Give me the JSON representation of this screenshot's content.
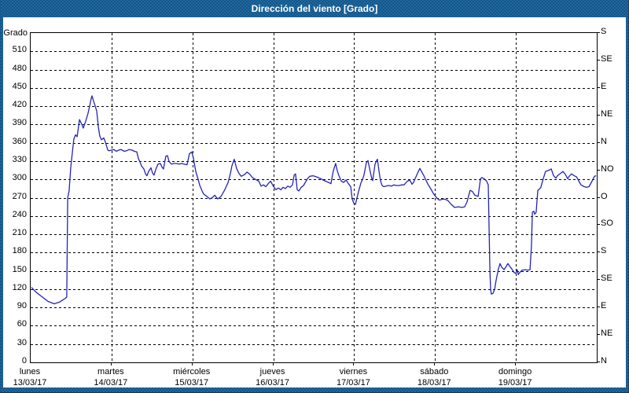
{
  "window": {
    "title": "Dirección del viento [Grado]"
  },
  "colors": {
    "titlebar": "#1f6ba3",
    "window_border_dark": "#0a3c63",
    "plot_border": "#000000",
    "grid": "#000000",
    "series": "#2424b8",
    "background": "#ffffff",
    "title_text": "#ffffff",
    "label_text": "#000000"
  },
  "chart_data": {
    "type": "line",
    "title": "Dirección del viento [Grado]",
    "ylabel_left": "Grado",
    "ylabel_unit": "Grado",
    "ylim": [
      0,
      540
    ],
    "grid": "dashed",
    "legend": "none",
    "y_left_ticks": [
      0,
      30,
      60,
      90,
      120,
      150,
      180,
      210,
      240,
      270,
      300,
      330,
      360,
      390,
      420,
      450,
      480,
      510
    ],
    "y_right_ticks": [
      {
        "value": 0,
        "label": "N"
      },
      {
        "value": 45,
        "label": "NE"
      },
      {
        "value": 90,
        "label": "E"
      },
      {
        "value": 135,
        "label": "SE"
      },
      {
        "value": 180,
        "label": "S"
      },
      {
        "value": 225,
        "label": "SO"
      },
      {
        "value": 270,
        "label": "O"
      },
      {
        "value": 315,
        "label": "NO"
      },
      {
        "value": 360,
        "label": "N"
      },
      {
        "value": 405,
        "label": "NE"
      },
      {
        "value": 450,
        "label": "E"
      },
      {
        "value": 495,
        "label": "SE"
      },
      {
        "value": 540,
        "label": "S"
      }
    ],
    "x_unit": "hours",
    "xlim": [
      0,
      168
    ],
    "x_days": [
      {
        "name": "lunes",
        "date": "13/03/17",
        "start_hour": 0
      },
      {
        "name": "martes",
        "date": "14/03/17",
        "start_hour": 24
      },
      {
        "name": "miércoles",
        "date": "15/03/17",
        "start_hour": 48
      },
      {
        "name": "jueves",
        "date": "16/03/17",
        "start_hour": 72
      },
      {
        "name": "viernes",
        "date": "17/03/17",
        "start_hour": 96
      },
      {
        "name": "sábado",
        "date": "18/03/17",
        "start_hour": 120
      },
      {
        "name": "domingo",
        "date": "19/03/17",
        "start_hour": 144
      }
    ],
    "series": [
      {
        "name": "Dirección del viento",
        "unit": "Grado",
        "color": "#2424b8",
        "points": [
          [
            0.2,
            123
          ],
          [
            1.6,
            115
          ],
          [
            3.5,
            107
          ],
          [
            5.1,
            100
          ],
          [
            7.0,
            96
          ],
          [
            8.6,
            99
          ],
          [
            10.3,
            105
          ],
          [
            10.7,
            107
          ],
          [
            11.0,
            270
          ],
          [
            11.4,
            281
          ],
          [
            11.9,
            320
          ],
          [
            12.4,
            345
          ],
          [
            12.8,
            366
          ],
          [
            13.3,
            373
          ],
          [
            13.8,
            370
          ],
          [
            14.5,
            398
          ],
          [
            15.2,
            390
          ],
          [
            15.6,
            384
          ],
          [
            16.3,
            395
          ],
          [
            17.0,
            408
          ],
          [
            17.5,
            420
          ],
          [
            18.0,
            433
          ],
          [
            18.2,
            437
          ],
          [
            18.7,
            428
          ],
          [
            19.1,
            421
          ],
          [
            19.6,
            412
          ],
          [
            20.1,
            386
          ],
          [
            20.5,
            371
          ],
          [
            21.0,
            365
          ],
          [
            21.7,
            368
          ],
          [
            22.2,
            361
          ],
          [
            22.9,
            348
          ],
          [
            23.3,
            347
          ],
          [
            24.0,
            348
          ],
          [
            24.7,
            349
          ],
          [
            25.4,
            346
          ],
          [
            26.1,
            348
          ],
          [
            26.8,
            349
          ],
          [
            27.8,
            346
          ],
          [
            28.5,
            347
          ],
          [
            29.2,
            349
          ],
          [
            30.1,
            348
          ],
          [
            30.8,
            346
          ],
          [
            31.5,
            345
          ],
          [
            32.0,
            334
          ],
          [
            32.4,
            329
          ],
          [
            32.9,
            322
          ],
          [
            33.6,
            317
          ],
          [
            34.1,
            309
          ],
          [
            34.5,
            306
          ],
          [
            35.0,
            313
          ],
          [
            35.7,
            319
          ],
          [
            36.2,
            310
          ],
          [
            36.6,
            307
          ],
          [
            37.1,
            316
          ],
          [
            37.8,
            325
          ],
          [
            38.5,
            326
          ],
          [
            39.0,
            320
          ],
          [
            39.4,
            317
          ],
          [
            40.1,
            338
          ],
          [
            40.6,
            339
          ],
          [
            41.1,
            329
          ],
          [
            41.8,
            325
          ],
          [
            42.5,
            326
          ],
          [
            43.2,
            326
          ],
          [
            44.1,
            325
          ],
          [
            44.8,
            326
          ],
          [
            45.5,
            325
          ],
          [
            46.4,
            324
          ],
          [
            47.1,
            342
          ],
          [
            47.8,
            345
          ],
          [
            48.3,
            335
          ],
          [
            49.0,
            313
          ],
          [
            49.7,
            300
          ],
          [
            50.2,
            290
          ],
          [
            50.9,
            281
          ],
          [
            51.3,
            276
          ],
          [
            52.3,
            272
          ],
          [
            53.2,
            268
          ],
          [
            53.9,
            270
          ],
          [
            54.6,
            274
          ],
          [
            55.5,
            268
          ],
          [
            56.5,
            272
          ],
          [
            57.6,
            283
          ],
          [
            58.6,
            295
          ],
          [
            59.3,
            310
          ],
          [
            59.7,
            322
          ],
          [
            60.4,
            333
          ],
          [
            61.1,
            318
          ],
          [
            61.8,
            310
          ],
          [
            62.5,
            305
          ],
          [
            63.5,
            308
          ],
          [
            64.2,
            312
          ],
          [
            65.1,
            308
          ],
          [
            65.8,
            303
          ],
          [
            66.7,
            300
          ],
          [
            67.7,
            297
          ],
          [
            68.4,
            289
          ],
          [
            69.1,
            291
          ],
          [
            69.8,
            288
          ],
          [
            70.5,
            293
          ],
          [
            71.2,
            297
          ],
          [
            72.1,
            288
          ],
          [
            72.8,
            283
          ],
          [
            73.5,
            286
          ],
          [
            74.2,
            283
          ],
          [
            74.9,
            287
          ],
          [
            75.6,
            285
          ],
          [
            76.3,
            289
          ],
          [
            77.0,
            287
          ],
          [
            77.7,
            291
          ],
          [
            78.2,
            307
          ],
          [
            78.6,
            309
          ],
          [
            79.1,
            283
          ],
          [
            79.6,
            281
          ],
          [
            80.3,
            287
          ],
          [
            81.0,
            290
          ],
          [
            82.1,
            301
          ],
          [
            82.8,
            305
          ],
          [
            83.8,
            306
          ],
          [
            84.9,
            304
          ],
          [
            86.1,
            301
          ],
          [
            86.8,
            299
          ],
          [
            87.5,
            297
          ],
          [
            88.4,
            295
          ],
          [
            89.1,
            293
          ],
          [
            89.8,
            314
          ],
          [
            90.5,
            326
          ],
          [
            91.0,
            314
          ],
          [
            91.5,
            306
          ],
          [
            92.2,
            297
          ],
          [
            92.9,
            295
          ],
          [
            93.6,
            299
          ],
          [
            94.3,
            293
          ],
          [
            95.0,
            288
          ],
          [
            95.4,
            268
          ],
          [
            95.9,
            261
          ],
          [
            96.4,
            259
          ],
          [
            96.6,
            264
          ],
          [
            97.3,
            280
          ],
          [
            98.0,
            294
          ],
          [
            98.5,
            300
          ],
          [
            98.9,
            307
          ],
          [
            99.6,
            327
          ],
          [
            100.1,
            331
          ],
          [
            100.8,
            312
          ],
          [
            101.3,
            300
          ],
          [
            101.5,
            298
          ],
          [
            102.2,
            325
          ],
          [
            102.7,
            331
          ],
          [
            102.9,
            333
          ],
          [
            103.4,
            313
          ],
          [
            103.8,
            298
          ],
          [
            104.3,
            290
          ],
          [
            104.8,
            288
          ],
          [
            105.5,
            289
          ],
          [
            106.2,
            290
          ],
          [
            107.1,
            289
          ],
          [
            107.8,
            291
          ],
          [
            108.5,
            290
          ],
          [
            109.4,
            290
          ],
          [
            110.1,
            291
          ],
          [
            110.8,
            291
          ],
          [
            111.8,
            297
          ],
          [
            112.5,
            299
          ],
          [
            113.2,
            292
          ],
          [
            113.6,
            295
          ],
          [
            114.8,
            310
          ],
          [
            115.5,
            318
          ],
          [
            116.7,
            306
          ],
          [
            117.8,
            293
          ],
          [
            118.8,
            284
          ],
          [
            119.5,
            277
          ],
          [
            120.6,
            269
          ],
          [
            121.3,
            266
          ],
          [
            122.5,
            268
          ],
          [
            123.7,
            266
          ],
          [
            124.8,
            259
          ],
          [
            125.8,
            254
          ],
          [
            126.9,
            255
          ],
          [
            128.1,
            254
          ],
          [
            128.8,
            255
          ],
          [
            129.5,
            263
          ],
          [
            130.4,
            282
          ],
          [
            131.1,
            280
          ],
          [
            131.8,
            274
          ],
          [
            132.8,
            272
          ],
          [
            133.5,
            301
          ],
          [
            133.9,
            303
          ],
          [
            134.6,
            301
          ],
          [
            135.3,
            297
          ],
          [
            135.8,
            291
          ],
          [
            136.0,
            230
          ],
          [
            136.3,
            150
          ],
          [
            136.5,
            120
          ],
          [
            136.7,
            112
          ],
          [
            137.2,
            113
          ],
          [
            137.7,
            120
          ],
          [
            138.1,
            134
          ],
          [
            138.8,
            153
          ],
          [
            139.3,
            162
          ],
          [
            139.8,
            156
          ],
          [
            140.5,
            152
          ],
          [
            141.2,
            158
          ],
          [
            141.6,
            162
          ],
          [
            142.1,
            158
          ],
          [
            142.8,
            153
          ],
          [
            143.5,
            147
          ],
          [
            144.0,
            146
          ],
          [
            144.4,
            152
          ],
          [
            144.7,
            144
          ],
          [
            145.1,
            147
          ],
          [
            145.8,
            151
          ],
          [
            146.8,
            152
          ],
          [
            147.5,
            151
          ],
          [
            148.2,
            152
          ],
          [
            148.6,
            190
          ],
          [
            148.9,
            246
          ],
          [
            149.3,
            248
          ],
          [
            149.6,
            243
          ],
          [
            150.0,
            246
          ],
          [
            150.5,
            282
          ],
          [
            151.0,
            284
          ],
          [
            151.4,
            287
          ],
          [
            152.1,
            301
          ],
          [
            152.8,
            313
          ],
          [
            153.8,
            315
          ],
          [
            154.5,
            317
          ],
          [
            155.2,
            306
          ],
          [
            155.9,
            302
          ],
          [
            156.3,
            306
          ],
          [
            157.3,
            310
          ],
          [
            158.0,
            313
          ],
          [
            158.7,
            308
          ],
          [
            159.4,
            301
          ],
          [
            159.8,
            305
          ],
          [
            160.5,
            309
          ],
          [
            161.3,
            306
          ],
          [
            162.0,
            304
          ],
          [
            162.7,
            297
          ],
          [
            163.3,
            291
          ],
          [
            164.3,
            288
          ],
          [
            165.0,
            287
          ],
          [
            165.7,
            288
          ],
          [
            166.6,
            297
          ],
          [
            167.3,
            305
          ],
          [
            167.8,
            306
          ]
        ]
      }
    ]
  }
}
